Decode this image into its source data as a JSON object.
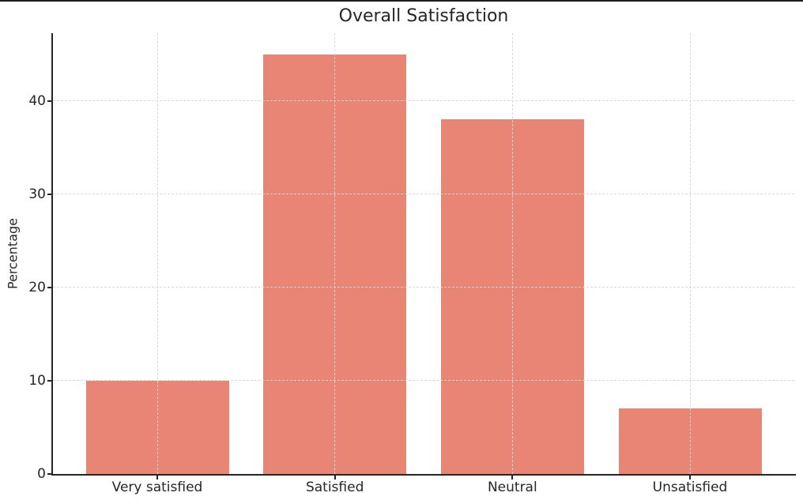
{
  "chart_data": {
    "type": "bar",
    "title": "Overall Satisfaction",
    "xlabel": "",
    "ylabel": "Percentage",
    "categories": [
      "Very satisfied",
      "Satisfied",
      "Neutral",
      "Unsatisfied"
    ],
    "values": [
      10,
      45,
      38,
      7
    ],
    "yticks": [
      0,
      10,
      20,
      30,
      40
    ],
    "ylim": [
      0,
      47.25
    ],
    "grid": "dashed, horizontal and vertical at bar centers, drawn above bars",
    "legend": "none",
    "colors": {
      "bar": "#e88575",
      "grid": "#d9d9d9",
      "spine": "#262626",
      "text": "#262626",
      "background": "#ffffff",
      "top_border": "#1d1d1d"
    }
  }
}
